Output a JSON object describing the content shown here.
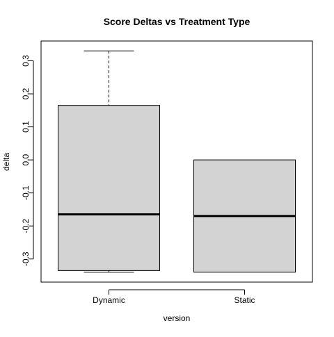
{
  "chart_data": {
    "type": "boxplot",
    "title": "Score Deltas vs Treatment Type",
    "xlabel": "version",
    "ylabel": "delta",
    "categories": [
      "Dynamic",
      "Static"
    ],
    "y_ticks": [
      -0.3,
      -0.2,
      -0.1,
      0.0,
      0.1,
      0.2,
      0.3
    ],
    "y_tick_labels": [
      "-0.3",
      "-0.2",
      "-0.1",
      "0.0",
      "0.1",
      "0.2",
      "0.3"
    ],
    "ylim": [
      -0.37,
      0.36
    ],
    "grid": false,
    "legend": "none",
    "boxes": [
      {
        "category": "Dynamic",
        "min": -0.34,
        "q1": -0.335,
        "median": -0.165,
        "q3": 0.165,
        "max": 0.33
      },
      {
        "category": "Static",
        "min": -0.34,
        "q1": -0.34,
        "median": -0.17,
        "q3": 0.0,
        "max": 0.0
      }
    ],
    "colors": {
      "box_fill": "#d3d3d3",
      "stroke": "#000000",
      "background": "#ffffff"
    }
  }
}
